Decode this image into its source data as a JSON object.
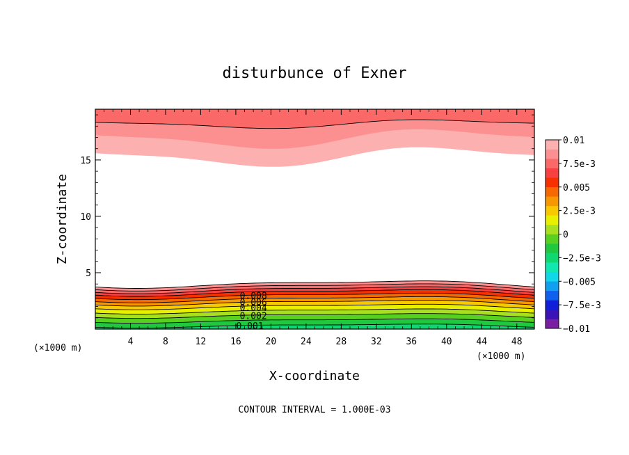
{
  "chart_data": {
    "type": "contour",
    "title": "disturbunce of Exner",
    "xlabel": "X-coordinate",
    "ylabel": "Z-coordinate",
    "x_unit_left": "(×1000 m)",
    "x_unit_right": "(×1000 m)",
    "footer": "CONTOUR INTERVAL = 1.000E-03",
    "xlim": [
      0,
      50
    ],
    "ylim": [
      0,
      19.5
    ],
    "x_ticks": [
      {
        "value": 4,
        "label": "4"
      },
      {
        "value": 8,
        "label": "8"
      },
      {
        "value": 12,
        "label": "12"
      },
      {
        "value": 16,
        "label": "16"
      },
      {
        "value": 20,
        "label": "20"
      },
      {
        "value": 24,
        "label": "24"
      },
      {
        "value": 28,
        "label": "28"
      },
      {
        "value": 32,
        "label": "32"
      },
      {
        "value": 36,
        "label": "36"
      },
      {
        "value": 40,
        "label": "40"
      },
      {
        "value": 44,
        "label": "44"
      },
      {
        "value": 48,
        "label": "48"
      }
    ],
    "y_ticks": [
      {
        "value": 5,
        "label": "5"
      },
      {
        "value": 10,
        "label": "10"
      },
      {
        "value": 15,
        "label": "15"
      }
    ],
    "contour_interval": 0.001,
    "colorbar": {
      "labels": [
        {
          "value": 0.01,
          "label": "0.01"
        },
        {
          "value": 0.0075,
          "label": "7.5e-3"
        },
        {
          "value": 0.005,
          "label": "0.005"
        },
        {
          "value": 0.0025,
          "label": "2.5e-3"
        },
        {
          "value": 0,
          "label": "0"
        },
        {
          "value": -0.0025,
          "label": "−2.5e-3"
        },
        {
          "value": -0.005,
          "label": "−0.005"
        },
        {
          "value": -0.0075,
          "label": "−7.5e-3"
        },
        {
          "value": -0.01,
          "label": "−0.01"
        }
      ],
      "colors": [
        "#7b1fa2",
        "#3a12b8",
        "#1020d8",
        "#1060f0",
        "#10a0f0",
        "#10d8e8",
        "#10e8b0",
        "#10d870",
        "#20c840",
        "#58d020",
        "#a8e020",
        "#e8f000",
        "#f8c800",
        "#f89800",
        "#f86800",
        "#f83000",
        "#f84040",
        "#fa6868",
        "#fc9090",
        "#fdb0b0"
      ]
    },
    "contour_labels": [
      {
        "x": 18.0,
        "z": 3.0,
        "label": "0.008"
      },
      {
        "x": 18.0,
        "z": 2.4,
        "label": "0.006"
      },
      {
        "x": 18.0,
        "z": 1.9,
        "label": "0.004"
      },
      {
        "x": 18.0,
        "z": 1.2,
        "label": "0.002"
      },
      {
        "x": 17.6,
        "z": 0.3,
        "label": "0.001"
      }
    ],
    "bottom_layers": [
      {
        "level": 0.009,
        "color": "#fc9090",
        "upper_base": 4.0
      },
      {
        "level": 0.008,
        "color": "#fa6868",
        "upper_base": 3.75
      },
      {
        "level": 0.0075,
        "color": "#f84040",
        "upper_base": 3.5
      },
      {
        "level": 0.007,
        "color": "#f83000",
        "upper_base": 3.25
      },
      {
        "level": 0.0065,
        "color": "#f86800",
        "upper_base": 2.95
      },
      {
        "level": 0.006,
        "color": "#f89800",
        "upper_base": 2.65
      },
      {
        "level": 0.005,
        "color": "#f8c800",
        "upper_base": 2.35
      },
      {
        "level": 0.004,
        "color": "#e8f000",
        "upper_base": 2.0
      },
      {
        "level": 0.003,
        "color": "#a8e020",
        "upper_base": 1.6
      },
      {
        "level": 0.002,
        "color": "#58d020",
        "upper_base": 1.2
      },
      {
        "level": 0.001,
        "color": "#20c840",
        "upper_base": 0.75
      },
      {
        "level": 0.0005,
        "color": "#10d870",
        "upper_base": 0.3
      }
    ],
    "top_layers": [
      {
        "level": 0.01,
        "color": "#fdb0b0",
        "lower_base": 15.3
      },
      {
        "level": 0.0095,
        "color": "#fc9090",
        "lower_base": 16.9
      },
      {
        "level": 0.009,
        "color": "#fa6868",
        "lower_base": 18.2
      }
    ]
  }
}
